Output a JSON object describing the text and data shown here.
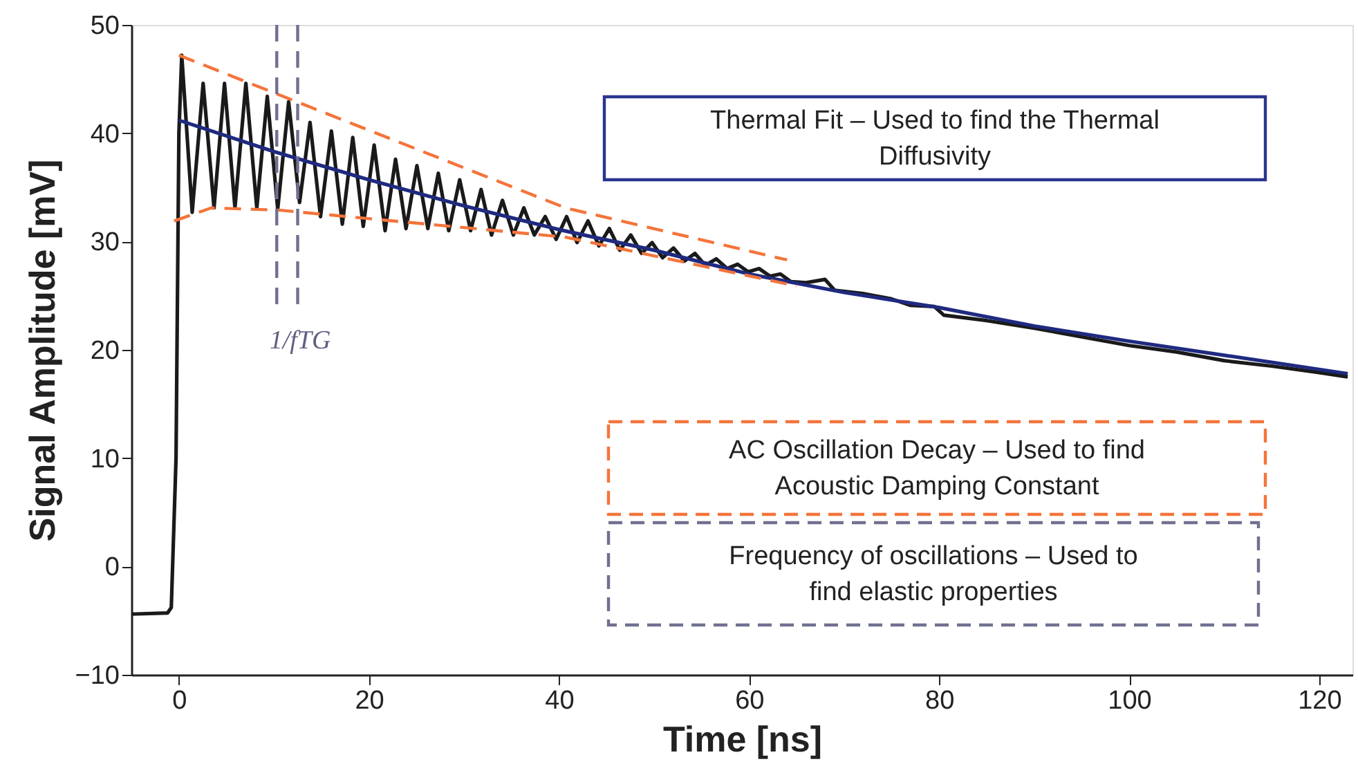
{
  "chart_data": {
    "type": "line",
    "xlabel": "Time [ns]",
    "ylabel": "Signal Amplitude [mV]",
    "xlim": [
      -5,
      123.5
    ],
    "ylim": [
      -10,
      50
    ],
    "xticks": [
      0,
      20,
      40,
      60,
      80,
      100,
      120
    ],
    "yticks": [
      -10,
      0,
      10,
      20,
      30,
      40,
      50
    ],
    "grid": false,
    "marker": "none",
    "annotations": [
      "Thermal Fit – Used to find the Thermal Diffusivity",
      "AC Oscillation Decay – Used to find Acoustic Damping Constant",
      "Frequency of oscillations – Used to find elastic properties",
      "1/fTG"
    ],
    "series": [
      {
        "color": "#1a1a1a",
        "line_style": "solid",
        "x": [
          -5,
          -1.2,
          -0.8,
          -0.3,
          0.0,
          0.3,
          1.4,
          2.55,
          3.7,
          4.8,
          5.9,
          7.05,
          8.2,
          9.3,
          10.4,
          11.55,
          12.7,
          13.8,
          14.9,
          16.05,
          17.2,
          18.3,
          19.4,
          20.55,
          21.7,
          22.8,
          23.9,
          25.05,
          26.2,
          27.3,
          28.4,
          29.55,
          30.7,
          31.8,
          32.9,
          34.05,
          35.2,
          36.3,
          37.4,
          38.55,
          39.7,
          40.8,
          41.9,
          43.05,
          44.2,
          45.3,
          46.4,
          47.55,
          48.7,
          49.8,
          50.9,
          52.05,
          53.2,
          54.3,
          55.4,
          56.55,
          57.7,
          58.8,
          59.9,
          61.05,
          62.2,
          63.3,
          64.4,
          66,
          68,
          69,
          72,
          75,
          77,
          79.5,
          80.5,
          85,
          90,
          95,
          100,
          105,
          110,
          115,
          120,
          123
        ],
        "values": [
          -4.4,
          -4.3,
          -3.8,
          10,
          40,
          47.2,
          32.7,
          44.6,
          33.1,
          44.6,
          33.1,
          44.6,
          33.1,
          43.4,
          33.0,
          42.9,
          33.6,
          41.0,
          32.3,
          40.2,
          31.6,
          39.6,
          31.4,
          38.9,
          31.0,
          37.6,
          31.2,
          37.0,
          31.2,
          36.3,
          31.0,
          35.7,
          31.0,
          34.8,
          30.6,
          33.8,
          30.6,
          33.1,
          30.6,
          32.3,
          30.2,
          32.3,
          29.9,
          31.9,
          29.6,
          31.2,
          29.2,
          30.6,
          28.9,
          29.9,
          28.5,
          29.4,
          28.2,
          28.9,
          27.8,
          28.4,
          27.5,
          27.9,
          27.2,
          27.5,
          26.8,
          27.0,
          26.3,
          26.2,
          26.5,
          25.5,
          25.2,
          24.7,
          24.1,
          24.0,
          23.2,
          22.7,
          22.0,
          21.2,
          20.4,
          19.8,
          19.0,
          18.5,
          17.9,
          17.5
        ]
      },
      {
        "color": "#1f2a80",
        "line_style": "solid",
        "x": [
          0,
          10,
          20,
          30,
          40,
          50,
          60,
          70,
          80,
          90,
          100,
          110,
          123
        ],
        "values": [
          41.2,
          38.3,
          35.7,
          33.3,
          31.1,
          29.2,
          27.0,
          25.3,
          23.9,
          22.2,
          20.8,
          19.5,
          17.8
        ]
      },
      {
        "color": "#f4743b",
        "line_style": "dashed",
        "x": [
          0,
          40.7,
          64
        ],
        "values": [
          47.2,
          33.1,
          28.3
        ]
      },
      {
        "color": "#f4743b",
        "line_style": "dashed",
        "x": [
          -0.5,
          3.4,
          10.5,
          40.7,
          65
        ],
        "values": [
          31.9,
          33.1,
          32.9,
          30.4,
          25.9
        ]
      },
      {
        "color": "#707090",
        "line_style": "dashed",
        "x": [
          10.3,
          10.3
        ],
        "values": [
          50,
          24
        ]
      },
      {
        "color": "#707090",
        "line_style": "dashed",
        "x": [
          12.5,
          12.5
        ],
        "values": [
          50,
          24
        ]
      }
    ]
  }
}
